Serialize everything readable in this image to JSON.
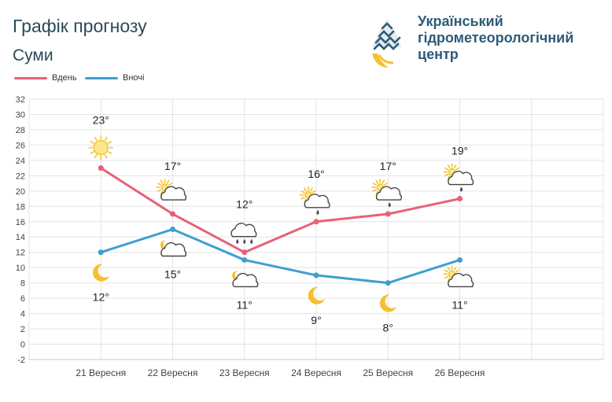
{
  "header": {
    "title": "Графік прогнозу",
    "city": "Суми"
  },
  "org": {
    "line1": "Український",
    "line2": "гідрометеорологічний",
    "line3": "центр"
  },
  "colors": {
    "day": "#e8607a",
    "night": "#3f9ed2",
    "grid": "#e4e4e4",
    "sun": "#f4c430",
    "moon": "#f2c12e"
  },
  "legend": {
    "day": "Вдень",
    "night": "Вночі"
  },
  "chart_data": {
    "type": "line",
    "categories": [
      "21 Вересня",
      "22 Вересня",
      "23 Вересня",
      "24 Вересня",
      "25 Вересня",
      "26 Вересня"
    ],
    "series": [
      {
        "name": "Вдень",
        "values": [
          23,
          17,
          12,
          16,
          17,
          19
        ]
      },
      {
        "name": "Вночі",
        "values": [
          12,
          15,
          11,
          9,
          8,
          11
        ]
      }
    ],
    "labels": {
      "day": [
        "23°",
        "17°",
        "12°",
        "16°",
        "17°",
        "19°"
      ],
      "night": [
        "12°",
        "15°",
        "11°",
        "9°",
        "8°",
        "11°"
      ]
    },
    "icons": {
      "day": [
        "sun-icon",
        "partly-cloudy-icon",
        "cloud-rain-icon",
        "partly-cloudy-rain-icon",
        "partly-cloudy-rain-icon",
        "partly-cloudy-rain-icon"
      ],
      "night": [
        "moon-icon",
        "partly-cloudy-night-icon",
        "partly-cloudy-night-icon",
        "moon-icon",
        "moon-icon",
        "partly-cloudy-icon"
      ]
    },
    "ylim": [
      -2,
      32
    ],
    "yticks": [
      32,
      30,
      28,
      26,
      24,
      22,
      20,
      18,
      16,
      14,
      12,
      10,
      8,
      6,
      4,
      2,
      0,
      -2
    ],
    "grid": true,
    "legend_position": "top-left"
  }
}
